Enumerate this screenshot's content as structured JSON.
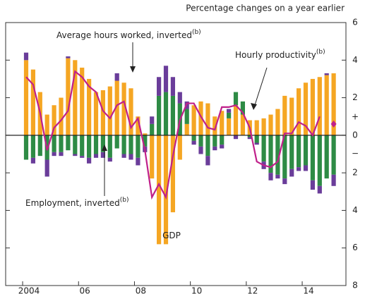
{
  "chart_data": {
    "type": "bar",
    "title": "Percentage changes on a year earlier",
    "categories": [
      "2004",
      null,
      null,
      null,
      null,
      null,
      null,
      null,
      "06",
      null,
      null,
      null,
      null,
      null,
      null,
      null,
      "08",
      null,
      null,
      null,
      null,
      null,
      null,
      null,
      "10",
      null,
      null,
      null,
      null,
      null,
      null,
      null,
      "12",
      null,
      null,
      null,
      null,
      null,
      null,
      null,
      "14",
      null,
      null,
      null,
      null
    ],
    "series": [
      {
        "name": "GDP",
        "color": "#f5a623",
        "values": [
          4.0,
          3.5,
          2.3,
          1.1,
          1.6,
          2.0,
          4.1,
          4.0,
          3.6,
          3.0,
          2.3,
          2.4,
          2.6,
          2.9,
          2.8,
          2.5,
          1.0,
          0.1,
          -2.3,
          -5.8,
          -5.8,
          -4.1,
          -1.3,
          0.6,
          1.6,
          1.8,
          1.7,
          1.0,
          1.3,
          0.9,
          1.6,
          1.1,
          0.8,
          0.8,
          0.9,
          1.1,
          1.4,
          2.1,
          2.0,
          2.5,
          2.8,
          3.0,
          3.1,
          3.2,
          3.3
        ]
      },
      {
        "name": "Employment, inverted",
        "color": "#2e8b45",
        "values": [
          -1.3,
          -1.2,
          -1.1,
          -1.3,
          -0.9,
          -0.9,
          -0.8,
          -1.0,
          -1.1,
          -1.2,
          -1.0,
          -0.9,
          -1.2,
          -0.7,
          -1.0,
          -1.0,
          -1.2,
          -0.6,
          0.6,
          2.1,
          2.3,
          2.1,
          1.7,
          0.8,
          -0.3,
          -0.6,
          -1.1,
          -0.6,
          -0.5,
          0.3,
          0.7,
          0.7,
          -0.1,
          -0.4,
          -1.4,
          -2.0,
          -2.1,
          -2.3,
          -1.8,
          -1.7,
          -1.6,
          -2.4,
          -2.7,
          -2.3,
          -2.1
        ]
      },
      {
        "name": "Average hours worked, inverted",
        "color": "#6a3d9a",
        "values": [
          0.4,
          -0.3,
          0,
          -0.9,
          -0.2,
          -0.2,
          0.1,
          -0.1,
          -0.1,
          -0.3,
          -0.2,
          -0.3,
          -0.2,
          0.4,
          -0.2,
          -0.3,
          -0.4,
          -0.3,
          0.4,
          1.0,
          1.4,
          1.0,
          0.6,
          0.4,
          -0.2,
          -0.4,
          -0.5,
          -0.2,
          -0.2,
          0.2,
          -0.2,
          0,
          -0.1,
          -0.1,
          -0.4,
          -0.4,
          -0.2,
          -0.3,
          -0.4,
          -0.2,
          -0.3,
          -0.5,
          -0.4,
          0.1,
          -0.6
        ]
      },
      {
        "name": "Hourly productivity",
        "color": "#c0208a",
        "type": "line",
        "values": [
          3.1,
          2.7,
          1.2,
          -0.8,
          0.4,
          0.8,
          1.3,
          3.4,
          3.1,
          2.6,
          2.3,
          1.3,
          0.9,
          1.6,
          1.8,
          0.4,
          0.9,
          -0.8,
          -3.3,
          -2.6,
          -3.3,
          -1.1,
          0.8,
          1.7,
          1.7,
          1.0,
          0.4,
          0.3,
          1.5,
          1.5,
          1.6,
          1.2,
          0.4,
          -1.4,
          -1.6,
          -1.7,
          -1.4,
          0.1,
          0.1,
          0.7,
          0.5,
          0.0,
          1.0,
          null,
          0.6
        ]
      }
    ],
    "ylim": [
      -8,
      6
    ],
    "yticks": [
      {
        "value": -8,
        "label": "8"
      },
      {
        "value": -6,
        "label": "6"
      },
      {
        "value": -4,
        "label": "4"
      },
      {
        "value": -2,
        "label": "2"
      },
      0,
      2,
      4,
      6
    ],
    "sign_labels": [
      "+",
      "−"
    ],
    "annotations": [
      {
        "text": "Average hours worked, inverted",
        "sup": "(b)"
      },
      {
        "text": "Hourly productivity",
        "sup": "(b)"
      },
      {
        "text": "Employment, inverted",
        "sup": "(b)"
      },
      {
        "text": "GDP"
      }
    ]
  }
}
